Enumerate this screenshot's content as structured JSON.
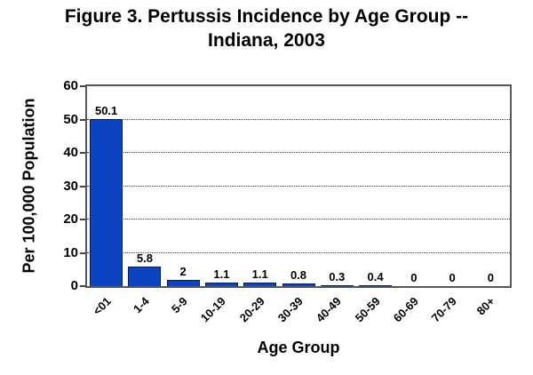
{
  "figure": {
    "title_line1": "Figure 3. Pertussis Incidence by Age Group --",
    "title_line2": "Indiana, 2003"
  },
  "chart_data": {
    "type": "bar",
    "title": "Figure 3. Pertussis Incidence by Age Group -- Indiana, 2003",
    "categories": [
      "<01",
      "1-4",
      "5-9",
      "10-19",
      "20-29",
      "30-39",
      "40-49",
      "50-59",
      "60-69",
      "70-79",
      "80+"
    ],
    "values": [
      50.1,
      5.8,
      2,
      1.1,
      1.1,
      0.8,
      0.3,
      0.4,
      0,
      0,
      0
    ],
    "data_labels": [
      "50.1",
      "5.8",
      "2",
      "1.1",
      "1.1",
      "0.8",
      "0.3",
      "0.4",
      "0",
      "0",
      "0"
    ],
    "xlabel": "Age Group",
    "ylabel": "Per 100,000 Population",
    "ylim": [
      0,
      60
    ],
    "yticks": [
      0,
      10,
      20,
      30,
      40,
      50,
      60
    ],
    "grid": "horizontal-dotted-major",
    "legend_position": "none",
    "bar_color": "#0b44c0",
    "bar_border_color": "#001b66"
  }
}
